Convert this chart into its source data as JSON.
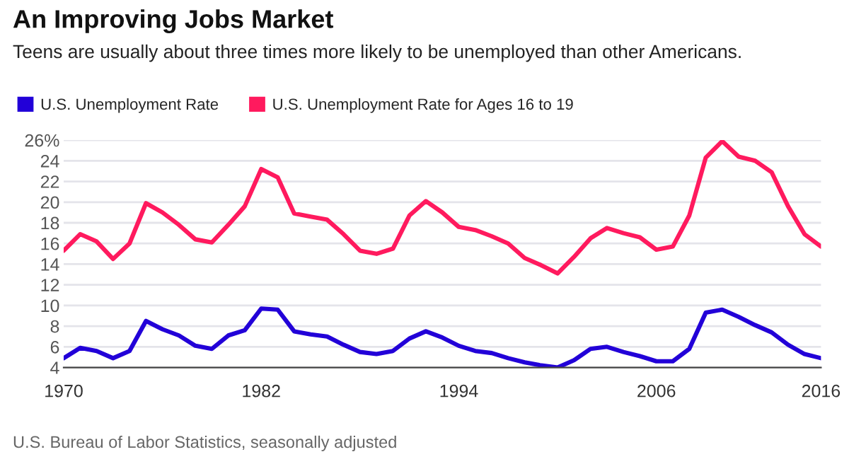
{
  "chart_data": {
    "type": "line",
    "title": "An Improving Jobs Market",
    "subtitle": "Teens are usually about three times more likely to be unemployed than other Americans.",
    "annotations": [
      "U.S. Bureau of Labor Statistics, seasonally adjusted"
    ],
    "x": [
      1970,
      1971,
      1972,
      1973,
      1974,
      1975,
      1976,
      1977,
      1978,
      1979,
      1980,
      1981,
      1982,
      1983,
      1984,
      1985,
      1986,
      1987,
      1988,
      1989,
      1990,
      1991,
      1992,
      1993,
      1994,
      1995,
      1996,
      1997,
      1998,
      1999,
      2000,
      2001,
      2002,
      2003,
      2004,
      2005,
      2006,
      2007,
      2008,
      2009,
      2010,
      2011,
      2012,
      2013,
      2014,
      2015,
      2016
    ],
    "series": [
      {
        "name": "U.S. Unemployment Rate",
        "color": "#2200d8",
        "values": [
          4.9,
          5.9,
          5.6,
          4.9,
          5.6,
          8.5,
          7.7,
          7.1,
          6.1,
          5.8,
          7.1,
          7.6,
          9.7,
          9.6,
          7.5,
          7.2,
          7.0,
          6.2,
          5.5,
          5.3,
          5.6,
          6.8,
          7.5,
          6.9,
          6.1,
          5.6,
          5.4,
          4.9,
          4.5,
          4.2,
          4.0,
          4.7,
          5.8,
          6.0,
          5.5,
          5.1,
          4.6,
          4.6,
          5.8,
          9.3,
          9.6,
          8.9,
          8.1,
          7.4,
          6.2,
          5.3,
          4.9
        ]
      },
      {
        "name": "U.S. Unemployment Rate for Ages 16 to 19",
        "color": "#ff1a5e",
        "values": [
          15.3,
          16.9,
          16.2,
          14.5,
          16.0,
          19.9,
          19.0,
          17.8,
          16.4,
          16.1,
          17.8,
          19.6,
          23.2,
          22.4,
          18.9,
          18.6,
          18.3,
          16.9,
          15.3,
          15.0,
          15.5,
          18.7,
          20.1,
          19.0,
          17.6,
          17.3,
          16.7,
          16.0,
          14.6,
          13.9,
          13.1,
          14.7,
          16.5,
          17.5,
          17.0,
          16.6,
          15.4,
          15.7,
          18.7,
          24.3,
          25.9,
          24.4,
          24.0,
          22.9,
          19.6,
          16.9,
          15.7
        ]
      }
    ],
    "xlim": [
      1970,
      2016
    ],
    "xticks": [
      1970,
      1982,
      1994,
      2006,
      2016
    ],
    "ylim": [
      4,
      26
    ],
    "yticks": [
      4,
      6,
      8,
      10,
      12,
      14,
      16,
      18,
      20,
      22,
      24,
      {
        "value": 26,
        "label": "26%"
      }
    ],
    "grid": "y",
    "legend": "top left",
    "marker": "none",
    "line_style": "solid"
  }
}
